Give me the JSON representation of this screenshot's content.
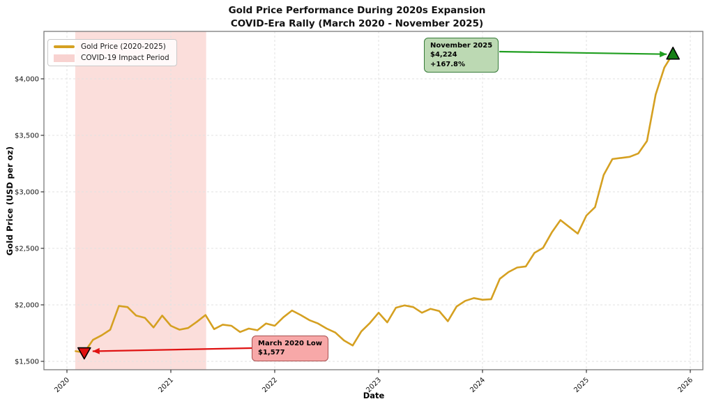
{
  "chart": {
    "title": "Gold Price Performance During 2020s Expansion",
    "subtitle": "COVID-Era Rally (March 2020 - November 2025)",
    "xlabel": "Date",
    "ylabel": "Gold Price (USD per oz)"
  },
  "legend": {
    "position": "upper left",
    "items": [
      {
        "label": "Gold Price (2020-2025)",
        "type": "line"
      },
      {
        "label": "COVID-19 Impact Period",
        "type": "patch"
      }
    ]
  },
  "annotations": {
    "high": {
      "title": "November 2025",
      "value": "$4,224",
      "change": "+167.8%"
    },
    "low": {
      "title": "March 2020 Low",
      "value": "$1,577"
    }
  },
  "colors": {
    "line": "#d5a021",
    "covid_fill": "#fbdedb",
    "legend_patch": "#f8d2d0",
    "low_marker": "#e01010",
    "high_marker": "#157f15",
    "low_arrow": "#e01212",
    "high_arrow": "#1f9e1f",
    "grid": "#e2e2e2",
    "spine": "#7a7a7a",
    "tick": "#333333"
  },
  "chart_data": {
    "type": "line",
    "title": "Gold Price Performance During 2020s Expansion",
    "subtitle": "COVID-Era Rally (March 2020 - November 2025)",
    "xlabel": "Date",
    "ylabel": "Gold Price (USD per oz)",
    "grid": true,
    "x_ticks": [
      2020,
      2021,
      2022,
      2023,
      2024,
      2025,
      2026
    ],
    "y_ticks": [
      1500,
      2000,
      2500,
      3000,
      3500,
      4000
    ],
    "y_tick_labels": [
      "$1,500",
      "$2,000",
      "$2,500",
      "$3,000",
      "$3,500",
      "$4,000"
    ],
    "xlim": [
      2019.78,
      2026.12
    ],
    "ylim": [
      1426,
      4420
    ],
    "covid_span": {
      "label": "COVID-19 Impact Period",
      "start_year": 2020.08,
      "end_year": 2021.34
    },
    "series": [
      {
        "name": "Gold Price (2020-2025)",
        "interval": "monthly",
        "start_year": 2020,
        "start_month": 2,
        "values": [
          1590,
          1577,
          1690,
          1730,
          1780,
          1990,
          1980,
          1905,
          1885,
          1800,
          1905,
          1815,
          1780,
          1795,
          1850,
          1910,
          1785,
          1825,
          1815,
          1760,
          1790,
          1775,
          1835,
          1815,
          1890,
          1950,
          1910,
          1865,
          1835,
          1790,
          1755,
          1685,
          1640,
          1765,
          1840,
          1930,
          1845,
          1975,
          1995,
          1980,
          1930,
          1965,
          1945,
          1855,
          1985,
          2035,
          2060,
          2045,
          2050,
          2230,
          2290,
          2330,
          2340,
          2460,
          2505,
          2640,
          2750,
          2690,
          2630,
          2790,
          2865,
          3150,
          3290,
          3300,
          3310,
          3340,
          3450,
          3860,
          4100,
          4224
        ]
      }
    ],
    "markers": [
      {
        "label": "March 2020 Low",
        "x_year": 2020.1667,
        "value": 1577,
        "shape": "triangle-down"
      },
      {
        "label": "November 2025",
        "x_year": 2025.8333,
        "value": 4224,
        "shape": "triangle-up"
      }
    ]
  }
}
